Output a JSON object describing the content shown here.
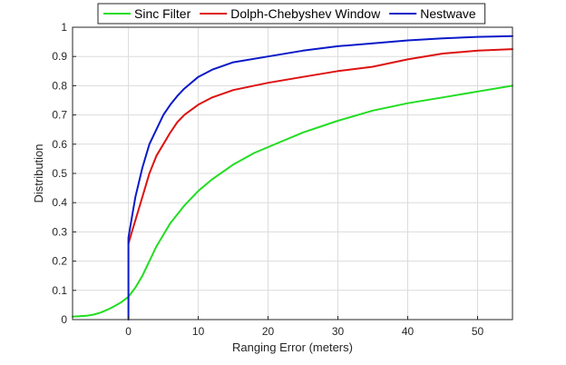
{
  "chart_data": {
    "type": "line",
    "title": "",
    "xlabel": "Ranging Error (meters)",
    "ylabel": "Distribution",
    "xlim": [
      -8,
      55
    ],
    "ylim": [
      0,
      1
    ],
    "x_ticks": [
      0,
      10,
      20,
      30,
      40,
      50
    ],
    "y_ticks": [
      0,
      0.1,
      0.2,
      0.3,
      0.4,
      0.5,
      0.6,
      0.7,
      0.8,
      0.9,
      1
    ],
    "y_tick_labels": [
      "0",
      "0.1",
      "0.2",
      "0.3",
      "0.4",
      "0.5",
      "0.6",
      "0.7",
      "0.8",
      "0.9",
      "1"
    ],
    "grid": true,
    "legend_position": "top",
    "series": [
      {
        "name": "Sinc Filter",
        "color": "#22dd22",
        "points": [
          [
            -8,
            0.01
          ],
          [
            -6,
            0.013
          ],
          [
            -5,
            0.017
          ],
          [
            -4,
            0.024
          ],
          [
            -3,
            0.034
          ],
          [
            -2,
            0.046
          ],
          [
            -1,
            0.06
          ],
          [
            0,
            0.078
          ],
          [
            1,
            0.11
          ],
          [
            2,
            0.15
          ],
          [
            3,
            0.2
          ],
          [
            4,
            0.25
          ],
          [
            5,
            0.29
          ],
          [
            6,
            0.33
          ],
          [
            7,
            0.36
          ],
          [
            8,
            0.39
          ],
          [
            10,
            0.44
          ],
          [
            12,
            0.48
          ],
          [
            15,
            0.53
          ],
          [
            18,
            0.57
          ],
          [
            20,
            0.59
          ],
          [
            25,
            0.64
          ],
          [
            30,
            0.68
          ],
          [
            35,
            0.715
          ],
          [
            40,
            0.74
          ],
          [
            45,
            0.76
          ],
          [
            50,
            0.78
          ],
          [
            55,
            0.8
          ]
        ]
      },
      {
        "name": "Dolph-Chebyshev Window",
        "color": "#dd1111",
        "points": [
          [
            0,
            0.26
          ],
          [
            0.5,
            0.3
          ],
          [
            1,
            0.34
          ],
          [
            2,
            0.42
          ],
          [
            3,
            0.5
          ],
          [
            4,
            0.56
          ],
          [
            5,
            0.6
          ],
          [
            6,
            0.64
          ],
          [
            7,
            0.675
          ],
          [
            8,
            0.7
          ],
          [
            10,
            0.735
          ],
          [
            12,
            0.76
          ],
          [
            15,
            0.785
          ],
          [
            20,
            0.81
          ],
          [
            25,
            0.83
          ],
          [
            30,
            0.85
          ],
          [
            35,
            0.865
          ],
          [
            40,
            0.89
          ],
          [
            45,
            0.91
          ],
          [
            50,
            0.92
          ],
          [
            55,
            0.925
          ]
        ]
      },
      {
        "name": "Nestwave",
        "color": "#0a1ac8",
        "points": [
          [
            0,
            0
          ],
          [
            0,
            0.28
          ],
          [
            0.5,
            0.35
          ],
          [
            1,
            0.42
          ],
          [
            2,
            0.52
          ],
          [
            3,
            0.6
          ],
          [
            4,
            0.65
          ],
          [
            5,
            0.7
          ],
          [
            6,
            0.735
          ],
          [
            7,
            0.765
          ],
          [
            8,
            0.79
          ],
          [
            10,
            0.83
          ],
          [
            12,
            0.855
          ],
          [
            15,
            0.88
          ],
          [
            20,
            0.9
          ],
          [
            25,
            0.92
          ],
          [
            30,
            0.935
          ],
          [
            35,
            0.945
          ],
          [
            40,
            0.955
          ],
          [
            45,
            0.962
          ],
          [
            50,
            0.967
          ],
          [
            55,
            0.97
          ]
        ]
      }
    ]
  }
}
